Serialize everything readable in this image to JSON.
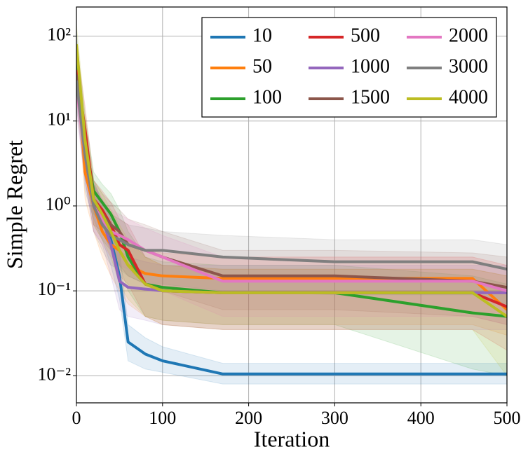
{
  "chart_data": {
    "type": "line",
    "xlabel": "Iteration",
    "ylabel": "Simple Regret",
    "xlim": [
      0,
      500
    ],
    "xticks": [
      0,
      100,
      200,
      300,
      400,
      500
    ],
    "ylim": [
      0.0048,
      220
    ],
    "ylog": true,
    "yticks": [
      {
        "value": 0.01,
        "label": "10⁻²"
      },
      {
        "value": 0.1,
        "label": "10⁻¹"
      },
      {
        "value": 1,
        "label": "10⁰"
      },
      {
        "value": 10,
        "label": "10¹"
      },
      {
        "value": 100,
        "label": "10²"
      }
    ],
    "grid": true,
    "legend": "upper right",
    "legend_columns": 3,
    "x": [
      0,
      10,
      20,
      30,
      40,
      50,
      60,
      80,
      100,
      170,
      300,
      460,
      500
    ],
    "series": [
      {
        "name": "10",
        "color": "#1f77b4",
        "values": [
          70,
          3,
          1.2,
          0.7,
          0.4,
          0.15,
          0.025,
          0.018,
          0.015,
          0.0105,
          0.0105,
          0.0105,
          0.0105
        ],
        "lower": [
          40,
          1.5,
          0.7,
          0.4,
          0.2,
          0.08,
          0.015,
          0.012,
          0.011,
          0.008,
          0.008,
          0.008,
          0.008
        ],
        "upper": [
          120,
          6,
          2,
          1.1,
          0.7,
          0.3,
          0.04,
          0.028,
          0.022,
          0.014,
          0.014,
          0.014,
          0.014
        ]
      },
      {
        "name": "50",
        "color": "#ff7f0e",
        "values": [
          60,
          2.5,
          1.0,
          0.5,
          0.35,
          0.3,
          0.2,
          0.16,
          0.15,
          0.14,
          0.14,
          0.14,
          0.06
        ],
        "lower": [
          30,
          1.2,
          0.5,
          0.25,
          0.15,
          0.1,
          0.07,
          0.05,
          0.045,
          0.04,
          0.04,
          0.04,
          0.03
        ],
        "upper": [
          100,
          5,
          1.8,
          0.9,
          0.6,
          0.5,
          0.35,
          0.3,
          0.28,
          0.25,
          0.25,
          0.25,
          0.2
        ]
      },
      {
        "name": "100",
        "color": "#2ca02c",
        "values": [
          50,
          6,
          1.5,
          1.1,
          0.8,
          0.5,
          0.25,
          0.12,
          0.11,
          0.095,
          0.095,
          0.055,
          0.05
        ],
        "lower": [
          25,
          3,
          0.8,
          0.6,
          0.4,
          0.2,
          0.1,
          0.05,
          0.045,
          0.04,
          0.04,
          0.012,
          0.01
        ],
        "upper": [
          90,
          12,
          2.5,
          1.8,
          1.4,
          0.9,
          0.5,
          0.25,
          0.22,
          0.2,
          0.2,
          0.15,
          0.12
        ]
      },
      {
        "name": "500",
        "color": "#d62728",
        "values": [
          40,
          8,
          1.2,
          0.9,
          0.6,
          0.35,
          0.3,
          0.12,
          0.1,
          0.095,
          0.095,
          0.095,
          0.065
        ],
        "lower": [
          20,
          4,
          0.6,
          0.5,
          0.3,
          0.15,
          0.12,
          0.05,
          0.04,
          0.035,
          0.035,
          0.035,
          0.02
        ],
        "upper": [
          80,
          15,
          2,
          1.5,
          1.1,
          0.7,
          0.6,
          0.25,
          0.2,
          0.18,
          0.18,
          0.18,
          0.15
        ]
      },
      {
        "name": "1000",
        "color": "#9467bd",
        "values": [
          30,
          4,
          1.0,
          0.7,
          0.35,
          0.13,
          0.11,
          0.105,
          0.1,
          0.095,
          0.095,
          0.095,
          0.095
        ],
        "lower": [
          15,
          2,
          0.5,
          0.35,
          0.15,
          0.06,
          0.05,
          0.045,
          0.04,
          0.035,
          0.035,
          0.035,
          0.035
        ],
        "upper": [
          60,
          8,
          1.8,
          1.2,
          0.7,
          0.3,
          0.25,
          0.22,
          0.2,
          0.2,
          0.2,
          0.2,
          0.2
        ]
      },
      {
        "name": "1500",
        "color": "#8c564b",
        "values": [
          35,
          5,
          1.1,
          0.8,
          0.6,
          0.5,
          0.35,
          0.3,
          0.25,
          0.15,
          0.15,
          0.13,
          0.11
        ],
        "lower": [
          18,
          2.5,
          0.6,
          0.4,
          0.3,
          0.2,
          0.15,
          0.12,
          0.1,
          0.06,
          0.06,
          0.05,
          0.04
        ],
        "upper": [
          70,
          10,
          2,
          1.4,
          1.1,
          0.9,
          0.7,
          0.6,
          0.5,
          0.3,
          0.3,
          0.28,
          0.25
        ]
      },
      {
        "name": "2000",
        "color": "#e377c2",
        "values": [
          25,
          4,
          1.0,
          0.7,
          0.5,
          0.45,
          0.4,
          0.3,
          0.25,
          0.13,
          0.13,
          0.13,
          0.1
        ],
        "lower": [
          12,
          2,
          0.5,
          0.35,
          0.25,
          0.2,
          0.18,
          0.12,
          0.1,
          0.05,
          0.05,
          0.05,
          0.04
        ],
        "upper": [
          50,
          8,
          1.8,
          1.2,
          0.9,
          0.8,
          0.7,
          0.55,
          0.45,
          0.25,
          0.25,
          0.25,
          0.2
        ]
      },
      {
        "name": "3000",
        "color": "#7f7f7f",
        "values": [
          30,
          4,
          1.0,
          0.6,
          0.45,
          0.4,
          0.35,
          0.3,
          0.3,
          0.25,
          0.22,
          0.22,
          0.18
        ],
        "lower": [
          15,
          2,
          0.5,
          0.3,
          0.2,
          0.18,
          0.15,
          0.12,
          0.12,
          0.1,
          0.09,
          0.09,
          0.07
        ],
        "upper": [
          60,
          8,
          1.8,
          1.1,
          0.8,
          0.7,
          0.6,
          0.55,
          0.5,
          0.45,
          0.4,
          0.4,
          0.35
        ]
      },
      {
        "name": "4000",
        "color": "#bcbd22",
        "values": [
          80,
          6,
          1.2,
          0.8,
          0.5,
          0.3,
          0.2,
          0.12,
          0.1,
          0.095,
          0.095,
          0.095,
          0.05
        ],
        "lower": [
          40,
          3,
          0.6,
          0.4,
          0.25,
          0.12,
          0.08,
          0.05,
          0.04,
          0.035,
          0.035,
          0.035,
          0.01
        ],
        "upper": [
          140,
          12,
          2,
          1.4,
          0.9,
          0.6,
          0.4,
          0.25,
          0.2,
          0.18,
          0.18,
          0.18,
          0.15
        ]
      }
    ]
  }
}
